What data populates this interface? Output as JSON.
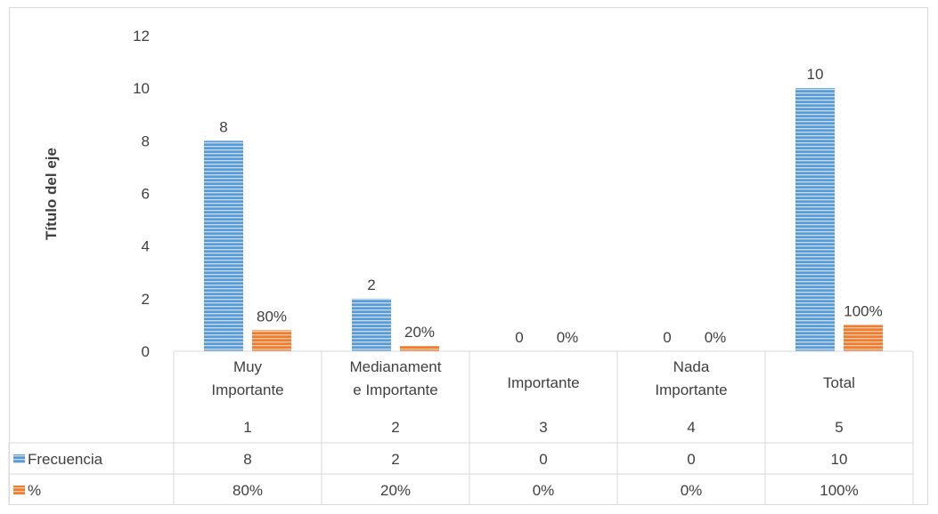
{
  "chart_data": {
    "type": "bar",
    "title": "",
    "ylabel": "Título del eje",
    "xlabel": "",
    "ylim": [
      0,
      12
    ],
    "yticks": [
      "0",
      "2",
      "4",
      "6",
      "8",
      "10",
      "12"
    ],
    "categories": [
      {
        "label": "Muy Importante",
        "label_lines": [
          "Muy",
          "Importante"
        ],
        "index": "1"
      },
      {
        "label": "Medianamente Importante",
        "label_lines": [
          "Medianament",
          "e Importante"
        ],
        "index": "2"
      },
      {
        "label": "Importante",
        "label_lines": [
          "Importante"
        ],
        "index": "3"
      },
      {
        "label": "Nada Importante",
        "label_lines": [
          "Nada",
          "Importante"
        ],
        "index": "4"
      },
      {
        "label": "Total",
        "label_lines": [
          "Total"
        ],
        "index": "5"
      }
    ],
    "series": [
      {
        "name": "Frecuencia",
        "color": "#5b9bd5",
        "values": [
          8,
          2,
          0,
          0,
          10
        ],
        "labels": [
          "8",
          "2",
          "0",
          "0",
          "10"
        ]
      },
      {
        "name": "%",
        "color": "#ed7d31",
        "values": [
          0.8,
          0.2,
          0,
          0,
          1
        ],
        "labels": [
          "80%",
          "20%",
          "0%",
          "0%",
          "100%"
        ]
      }
    ],
    "grid": false,
    "legend": "data-table"
  }
}
